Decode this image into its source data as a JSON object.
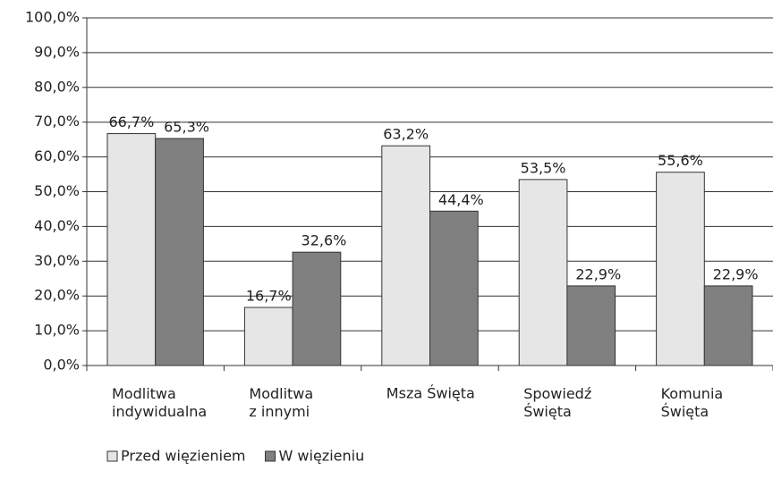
{
  "chart_data": {
    "type": "bar",
    "categories": [
      "Modlitwa\nindywidualna",
      "Modlitwa\nz innymi",
      "Msza Święta",
      "Spowiedź\nŚwięta",
      "Komunia\nŚwięta"
    ],
    "series": [
      {
        "name": "Przed więzieniem",
        "color": "#e6e6e6",
        "values": [
          66.7,
          16.7,
          63.2,
          53.5,
          55.6
        ],
        "value_labels": [
          "66,7%",
          "16,7%",
          "63,2%",
          "53,5%",
          "55,6%"
        ]
      },
      {
        "name": "W więzieniu",
        "color": "#808080",
        "values": [
          65.3,
          32.6,
          44.4,
          22.9,
          22.9
        ],
        "value_labels": [
          "65,3%",
          "32,6%",
          "44,4%",
          "22,9%",
          "22,9%"
        ]
      }
    ],
    "ylim": [
      0,
      100
    ],
    "yticks": [
      {
        "value": 0,
        "label": "0,0%"
      },
      {
        "value": 10,
        "label": "10,0%"
      },
      {
        "value": 20,
        "label": "20,0%"
      },
      {
        "value": 30,
        "label": "30,0%"
      },
      {
        "value": 40,
        "label": "40,0%"
      },
      {
        "value": 50,
        "label": "50,0%"
      },
      {
        "value": 60,
        "label": "60,0%"
      },
      {
        "value": 70,
        "label": "70,0%"
      },
      {
        "value": 80,
        "label": "80,0%"
      },
      {
        "value": 90,
        "label": "90,0%"
      },
      {
        "value": 100,
        "label": "100,0%"
      }
    ],
    "grid": true,
    "legend": "bottom"
  }
}
